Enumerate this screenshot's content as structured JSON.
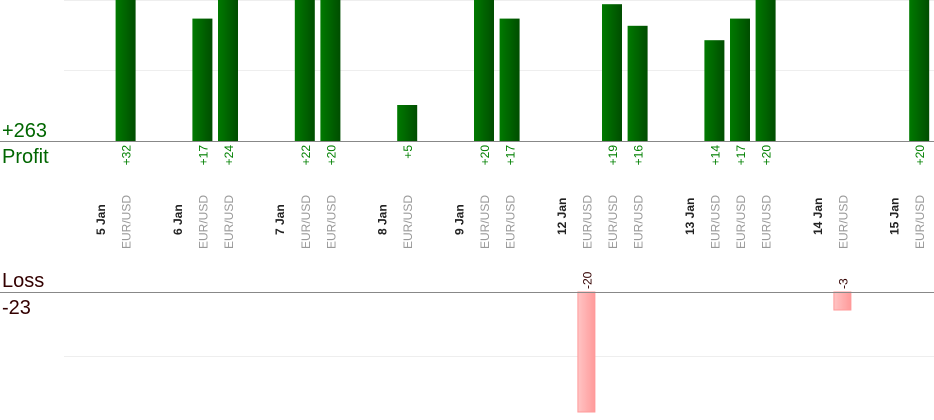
{
  "chart_data": {
    "type": "bar",
    "profit_label": "Profit",
    "loss_label": "Loss",
    "profit_total": "+263",
    "loss_total": "-23",
    "groups": [
      {
        "date": "5 Jan",
        "trades": [
          {
            "symbol": "EUR/USD",
            "value": 32
          }
        ]
      },
      {
        "date": "6 Jan",
        "trades": [
          {
            "symbol": "EUR/USD",
            "value": 17
          },
          {
            "symbol": "EUR/USD",
            "value": 24
          }
        ]
      },
      {
        "date": "7 Jan",
        "trades": [
          {
            "symbol": "EUR/USD",
            "value": 22
          },
          {
            "symbol": "EUR/USD",
            "value": 20
          }
        ]
      },
      {
        "date": "8 Jan",
        "trades": [
          {
            "symbol": "EUR/USD",
            "value": 5
          }
        ]
      },
      {
        "date": "9 Jan",
        "trades": [
          {
            "symbol": "EUR/USD",
            "value": 20
          },
          {
            "symbol": "EUR/USD",
            "value": 17
          }
        ]
      },
      {
        "date": "12 Jan",
        "trades": [
          {
            "symbol": "EUR/USD",
            "value": -20
          },
          {
            "symbol": "EUR/USD",
            "value": 19
          },
          {
            "symbol": "EUR/USD",
            "value": 16
          }
        ]
      },
      {
        "date": "13 Jan",
        "trades": [
          {
            "symbol": "EUR/USD",
            "value": 14
          },
          {
            "symbol": "EUR/USD",
            "value": 17
          },
          {
            "symbol": "EUR/USD",
            "value": 20
          }
        ]
      },
      {
        "date": "14 Jan",
        "trades": [
          {
            "symbol": "EUR/USD",
            "value": -3
          }
        ]
      },
      {
        "date": "15 Jan",
        "trades": [
          {
            "symbol": "EUR/USD",
            "value": 20
          }
        ]
      }
    ],
    "colors": {
      "profit": "#006600",
      "profit_text": "#008000",
      "loss": "#ffaaaa",
      "loss_text": "#330000",
      "date_text": "#222222",
      "symbol_text": "#999999",
      "axis": "#888888",
      "grid": "#eeeeee"
    }
  }
}
